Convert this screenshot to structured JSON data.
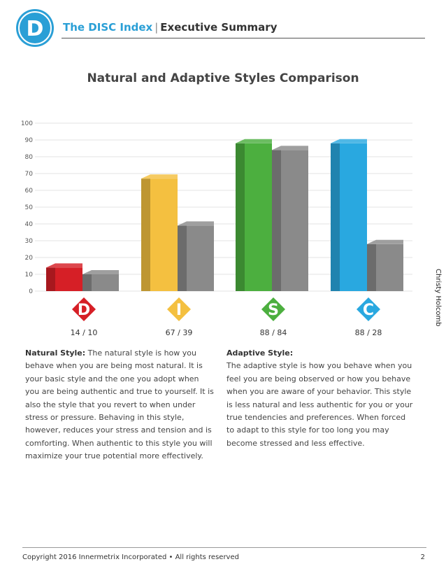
{
  "header": {
    "logo_letter": "D",
    "brand": "The DISC Index",
    "separator": "|",
    "section": "Executive Summary"
  },
  "side_name": "Christy Holcomb",
  "chart_data": {
    "type": "bar",
    "title": "Natural and Adaptive Styles Comparison",
    "categories": [
      "D",
      "I",
      "S",
      "C"
    ],
    "series": [
      {
        "values": [
          14,
          67,
          88,
          88
        ]
      },
      {
        "values": [
          10,
          39,
          84,
          28
        ]
      }
    ],
    "ylim": [
      0,
      100
    ],
    "yticks": [
      0,
      10,
      20,
      30,
      40,
      50,
      60,
      70,
      80,
      90,
      100
    ],
    "grid": true,
    "value_labels": [
      "14 / 10",
      "67 / 39",
      "88 / 84",
      "88 / 28"
    ],
    "colors": {
      "D": "#d61f26",
      "I": "#f4c040",
      "S": "#4caf3f",
      "C": "#29a8e0",
      "adaptive": "#8a8a8a"
    }
  },
  "natural": {
    "label": "Natural Style:",
    "text": " The natural style is how you behave when you are being  most natural. It is your basic style and the one you adopt when you are being authentic and true to yourself.  It is also the style that you revert to when under stress or pressure. Behaving in this style, however, reduces your stress and tension and is comforting. When authentic to this style you will maximize your true potential more effectively."
  },
  "adaptive": {
    "label": "Adaptive Style:",
    "text": "The adaptive style is how you behave when you feel you are being observed or how you behave when you are aware of your behavior. This style is less natural and less authentic for you or your true tendencies and preferences. When forced to adapt to this style for too long you may become stressed and less effective."
  },
  "footer": {
    "copyright": "Copyright 2016 Innermetrix Incorporated • All rights reserved",
    "page": "2"
  }
}
